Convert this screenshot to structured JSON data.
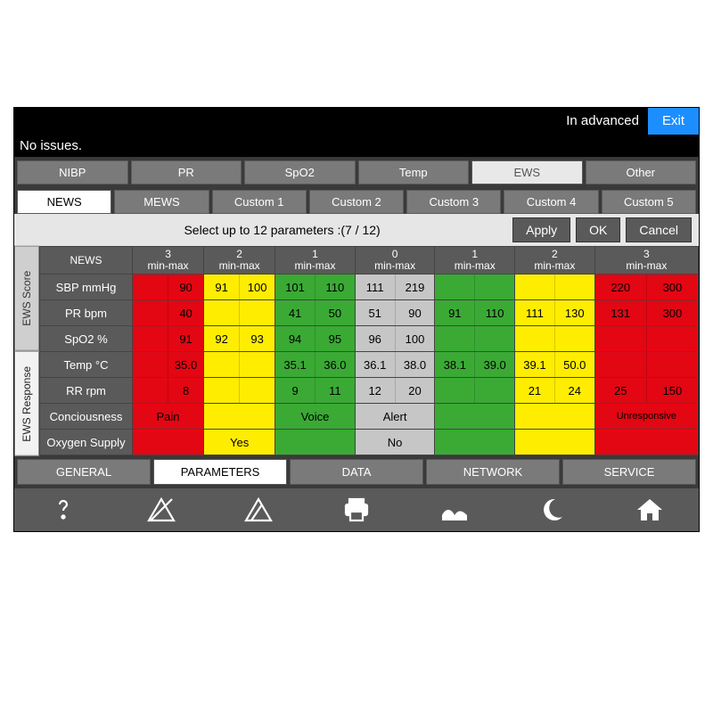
{
  "colors": {
    "bg_black": "#000000",
    "bg_dark": "#3a3a3a",
    "bg_mid": "#5a5a5a",
    "bg_tab": "#7a7a7a",
    "bg_lt": "#e6e6e6",
    "accent": "#1c8eff",
    "red": "#e30613",
    "yellow": "#ffed00",
    "green": "#3aaa35",
    "grey": "#c6c6c6"
  },
  "top": {
    "status": "In advanced",
    "exit": "Exit"
  },
  "issues": "No issues.",
  "tabs1": [
    {
      "label": "NIBP",
      "active": false
    },
    {
      "label": "PR",
      "active": false
    },
    {
      "label": "SpO2",
      "active": false
    },
    {
      "label": "Temp",
      "active": false
    },
    {
      "label": "EWS",
      "active": true
    },
    {
      "label": "Other",
      "active": false
    }
  ],
  "tabs2": [
    {
      "label": "NEWS",
      "active": true
    },
    {
      "label": "MEWS",
      "active": false
    },
    {
      "label": "Custom 1",
      "active": false
    },
    {
      "label": "Custom 2",
      "active": false
    },
    {
      "label": "Custom 3",
      "active": false
    },
    {
      "label": "Custom 4",
      "active": false
    },
    {
      "label": "Custom 5",
      "active": false
    }
  ],
  "selbar": {
    "text": "Select up to 12 parameters :(7 / 12)",
    "apply": "Apply",
    "ok": "OK",
    "cancel": "Cancel"
  },
  "sidetabs": [
    {
      "label": "EWS Score",
      "active": false
    },
    {
      "label": "EWS Response",
      "active": true
    }
  ],
  "header": {
    "corner": "NEWS",
    "cols": [
      {
        "score": "3",
        "sub": "min-max"
      },
      {
        "score": "2",
        "sub": "min-max"
      },
      {
        "score": "1",
        "sub": "min-max"
      },
      {
        "score": "0",
        "sub": "min-max"
      },
      {
        "score": "1",
        "sub": "min-max"
      },
      {
        "score": "2",
        "sub": "min-max"
      },
      {
        "score": "3",
        "sub": "min-max"
      }
    ]
  },
  "rows": [
    {
      "label": "SBP mmHg",
      "cells": [
        {
          "c": "red",
          "a": "",
          "b": "90"
        },
        {
          "c": "yel",
          "a": "91",
          "b": "100"
        },
        {
          "c": "grn",
          "a": "101",
          "b": "110"
        },
        {
          "c": "gry",
          "a": "111",
          "b": "219"
        },
        {
          "c": "grn",
          "a": "",
          "b": ""
        },
        {
          "c": "yel",
          "a": "",
          "b": ""
        },
        {
          "c": "red",
          "a": "220",
          "b": "300"
        }
      ]
    },
    {
      "label": "PR bpm",
      "cells": [
        {
          "c": "red",
          "a": "",
          "b": "40"
        },
        {
          "c": "yel",
          "a": "",
          "b": ""
        },
        {
          "c": "grn",
          "a": "41",
          "b": "50"
        },
        {
          "c": "gry",
          "a": "51",
          "b": "90"
        },
        {
          "c": "grn",
          "a": "91",
          "b": "110"
        },
        {
          "c": "yel",
          "a": "111",
          "b": "130"
        },
        {
          "c": "red",
          "a": "131",
          "b": "300"
        }
      ]
    },
    {
      "label": "SpO2 %",
      "cells": [
        {
          "c": "red",
          "a": "",
          "b": "91"
        },
        {
          "c": "yel",
          "a": "92",
          "b": "93"
        },
        {
          "c": "grn",
          "a": "94",
          "b": "95"
        },
        {
          "c": "gry",
          "a": "96",
          "b": "100"
        },
        {
          "c": "grn",
          "a": "",
          "b": ""
        },
        {
          "c": "yel",
          "a": "",
          "b": ""
        },
        {
          "c": "red",
          "a": "",
          "b": ""
        }
      ]
    },
    {
      "label": "Temp °C",
      "cells": [
        {
          "c": "red",
          "a": "",
          "b": "35.0"
        },
        {
          "c": "yel",
          "a": "",
          "b": ""
        },
        {
          "c": "grn",
          "a": "35.1",
          "b": "36.0"
        },
        {
          "c": "gry",
          "a": "36.1",
          "b": "38.0"
        },
        {
          "c": "grn",
          "a": "38.1",
          "b": "39.0"
        },
        {
          "c": "yel",
          "a": "39.1",
          "b": "50.0"
        },
        {
          "c": "red",
          "a": "",
          "b": ""
        }
      ]
    },
    {
      "label": "RR rpm",
      "cells": [
        {
          "c": "red",
          "a": "",
          "b": "8"
        },
        {
          "c": "yel",
          "a": "",
          "b": ""
        },
        {
          "c": "grn",
          "a": "9",
          "b": "11"
        },
        {
          "c": "gry",
          "a": "12",
          "b": "20"
        },
        {
          "c": "grn",
          "a": "",
          "b": ""
        },
        {
          "c": "yel",
          "a": "21",
          "b": "24"
        },
        {
          "c": "red",
          "a": "25",
          "b": "150"
        }
      ]
    },
    {
      "label": "Conciousness",
      "cells": [
        {
          "c": "red",
          "t": "Pain"
        },
        {
          "c": "yel",
          "t": ""
        },
        {
          "c": "grn",
          "t": "Voice"
        },
        {
          "c": "gry",
          "t": "Alert"
        },
        {
          "c": "grn",
          "t": ""
        },
        {
          "c": "yel",
          "t": ""
        },
        {
          "c": "red",
          "t": "Unresponsive"
        }
      ]
    },
    {
      "label": "Oxygen Supply",
      "cells": [
        {
          "c": "red",
          "t": ""
        },
        {
          "c": "yel",
          "t": "Yes"
        },
        {
          "c": "grn",
          "t": ""
        },
        {
          "c": "gry",
          "t": "No"
        },
        {
          "c": "grn",
          "t": ""
        },
        {
          "c": "yel",
          "t": ""
        },
        {
          "c": "red",
          "t": ""
        }
      ]
    }
  ],
  "bottomtabs": [
    {
      "label": "GENERAL",
      "active": false
    },
    {
      "label": "PARAMETERS",
      "active": true
    },
    {
      "label": "DATA",
      "active": false
    },
    {
      "label": "NETWORK",
      "active": false
    },
    {
      "label": "SERVICE",
      "active": false
    }
  ],
  "icons": [
    "help",
    "alarm-off",
    "alarm-reset",
    "print",
    "patient",
    "night",
    "home"
  ]
}
